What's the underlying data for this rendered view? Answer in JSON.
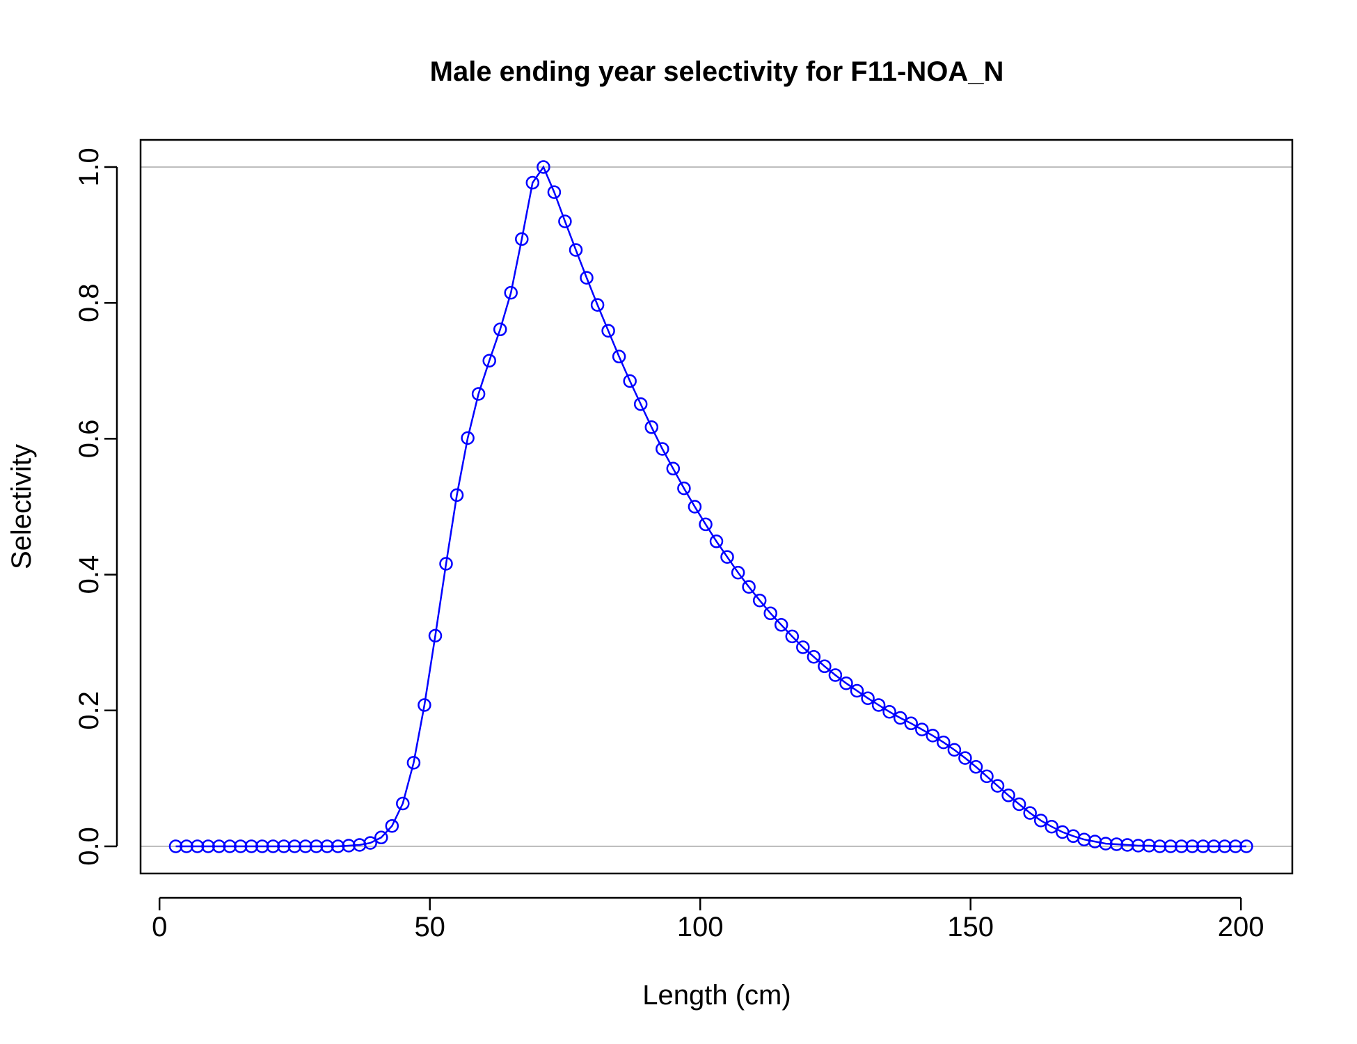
{
  "chart_data": {
    "type": "line",
    "title": "Male ending year selectivity for F11-NOA_N",
    "xlabel": "Length (cm)",
    "ylabel": "Selectivity",
    "xlim": [
      -3.5,
      209.5
    ],
    "ylim": [
      -0.04,
      1.04
    ],
    "x_ticks": [
      "0",
      "50",
      "100",
      "150",
      "200"
    ],
    "y_ticks": [
      "0.0",
      "0.2",
      "0.4",
      "0.6",
      "0.8",
      "1.0"
    ],
    "reference_lines_y": [
      0,
      1
    ],
    "grid": false,
    "series": [
      {
        "color": "#0000ff",
        "marker": "open-circle",
        "x": [
          3,
          5,
          7,
          9,
          11,
          13,
          15,
          17,
          19,
          21,
          23,
          25,
          27,
          29,
          31,
          33,
          35,
          37,
          39,
          41,
          43,
          45,
          47,
          49,
          51,
          53,
          55,
          57,
          59,
          61,
          63,
          65,
          67,
          69,
          71,
          73,
          75,
          77,
          79,
          81,
          83,
          85,
          87,
          89,
          91,
          93,
          95,
          97,
          99,
          101,
          103,
          105,
          107,
          109,
          111,
          113,
          115,
          117,
          119,
          121,
          123,
          125,
          127,
          129,
          131,
          133,
          135,
          137,
          139,
          141,
          143,
          145,
          147,
          149,
          151,
          153,
          155,
          157,
          159,
          161,
          163,
          165,
          167,
          169,
          171,
          173,
          175,
          177,
          179,
          181,
          183,
          185,
          187,
          189,
          191,
          193,
          195,
          197,
          199,
          201
        ],
        "y": [
          0,
          0,
          0,
          0,
          0,
          0,
          0,
          0,
          0,
          0,
          0,
          0,
          0,
          0,
          0,
          0,
          0.001,
          0.002,
          0.005,
          0.013,
          0.03,
          0.063,
          0.123,
          0.208,
          0.31,
          0.416,
          0.517,
          0.601,
          0.666,
          0.715,
          0.761,
          0.815,
          0.894,
          0.977,
          1.0,
          0.963,
          0.92,
          0.878,
          0.837,
          0.797,
          0.759,
          0.721,
          0.685,
          0.651,
          0.617,
          0.585,
          0.556,
          0.527,
          0.5,
          0.474,
          0.449,
          0.426,
          0.403,
          0.382,
          0.362,
          0.343,
          0.326,
          0.309,
          0.293,
          0.279,
          0.265,
          0.252,
          0.24,
          0.229,
          0.218,
          0.208,
          0.198,
          0.189,
          0.181,
          0.172,
          0.163,
          0.153,
          0.142,
          0.13,
          0.117,
          0.103,
          0.089,
          0.075,
          0.062,
          0.049,
          0.038,
          0.029,
          0.021,
          0.015,
          0.01,
          0.007,
          0.004,
          0.003,
          0.002,
          0.001,
          0.001,
          0,
          0,
          0,
          0,
          0,
          0,
          0,
          0,
          0
        ]
      }
    ]
  }
}
